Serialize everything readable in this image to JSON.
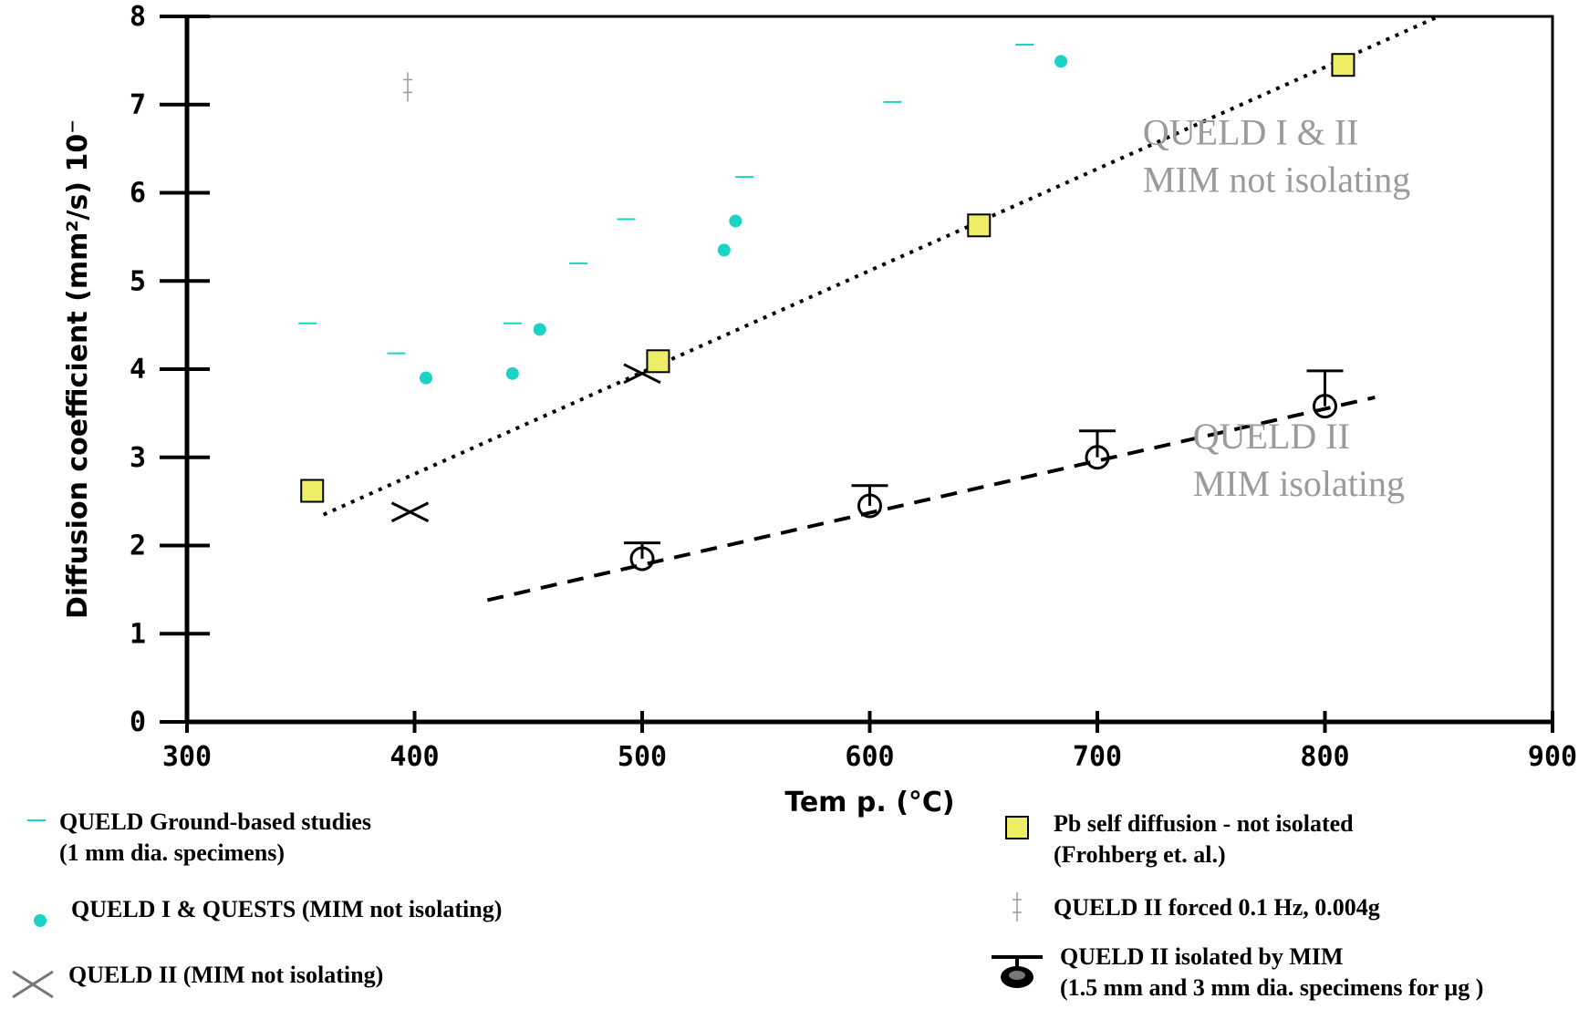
{
  "chart_data": {
    "type": "scatter",
    "title": "",
    "xlabel": "Tem p. (°C)",
    "ylabel": "Diffusion coefficient (mm²/s) 10⁻",
    "xlim": [
      300,
      900
    ],
    "ylim": [
      0,
      8
    ],
    "x_ticks": [
      300,
      400,
      500,
      600,
      700,
      800,
      900
    ],
    "y_ticks": [
      0,
      1,
      2,
      3,
      4,
      5,
      6,
      7,
      8
    ],
    "grid": false,
    "series": [
      {
        "name": "QUELD Ground-based studies (1 mm dia. specimens)",
        "marker": "dash",
        "color": "#19d3c5",
        "points": [
          [
            353,
            4.52
          ],
          [
            392,
            4.18
          ],
          [
            443,
            4.52
          ],
          [
            472,
            5.2
          ],
          [
            493,
            5.7
          ],
          [
            545,
            6.18
          ],
          [
            610,
            7.03
          ],
          [
            668,
            7.68
          ]
        ]
      },
      {
        "name": "QUELD I & QUESTS (MIM not isolating)",
        "marker": "dot",
        "color": "#19d3c5",
        "points": [
          [
            405,
            3.9
          ],
          [
            443,
            3.95
          ],
          [
            455,
            4.45
          ],
          [
            536,
            5.35
          ],
          [
            541,
            5.68
          ],
          [
            684,
            7.49
          ]
        ]
      },
      {
        "name": "QUELD II (MIM not isolating)",
        "marker": "x",
        "color": "#000000",
        "points": [
          [
            398,
            2.38
          ],
          [
            500,
            3.95
          ]
        ]
      },
      {
        "name": "Pb self diffusion - not isolated (Frohberg et. al.)",
        "marker": "square",
        "color": "#eeee66",
        "points": [
          [
            355,
            2.62
          ],
          [
            507,
            4.09
          ],
          [
            648,
            5.63
          ],
          [
            808,
            7.45
          ]
        ]
      },
      {
        "name": "QUELD II forced 0.1 Hz, 0.004g",
        "marker": "double-dagger",
        "color": "#9a9a9a",
        "points": [
          [
            397,
            7.2
          ]
        ]
      },
      {
        "name": "QUELD II isolated by MIM (1.5 mm and 3 mm dia. specimens for µg )",
        "marker": "errorbar",
        "color": "#000000",
        "points": [
          [
            500,
            1.85,
            2.03
          ],
          [
            600,
            2.45,
            2.68
          ],
          [
            700,
            3.0,
            3.3
          ],
          [
            800,
            3.58,
            3.98
          ]
        ]
      }
    ],
    "trendlines": [
      {
        "style": "dotted",
        "from": [
          360,
          2.35
        ],
        "to": [
          850,
          8.0
        ]
      },
      {
        "style": "dashed",
        "from": [
          432,
          1.38
        ],
        "to": [
          822,
          3.68
        ]
      }
    ],
    "annotations": [
      {
        "lines": [
          "QUELD I & II",
          "MIM not isolating"
        ],
        "x": 720,
        "y": 6.55
      },
      {
        "lines": [
          "QUELD II",
          "MIM isolating"
        ],
        "x": 742,
        "y": 3.1
      }
    ],
    "legend": {
      "placement": "bottom",
      "items": [
        {
          "marker": "dash",
          "lines": [
            "QUELD Ground-based studies",
            "(1 mm dia. specimens)"
          ]
        },
        {
          "marker": "dot",
          "lines": [
            "QUELD I & QUESTS (MIM not isolating)"
          ]
        },
        {
          "marker": "x",
          "lines": [
            "QUELD II (MIM not isolating)"
          ]
        },
        {
          "marker": "square",
          "lines": [
            "Pb self diffusion - not isolated",
            "(Frohberg et. al.)"
          ]
        },
        {
          "marker": "double-dagger",
          "lines": [
            "QUELD II forced 0.1 Hz, 0.004g"
          ]
        },
        {
          "marker": "errorbar",
          "lines": [
            "QUELD II isolated by MIM",
            "(1.5 mm and 3 mm dia. specimens for µg )"
          ]
        }
      ]
    }
  }
}
